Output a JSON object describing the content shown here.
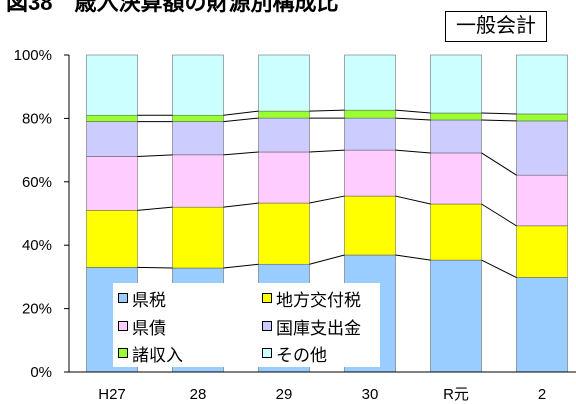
{
  "chart_data": {
    "type": "bar",
    "stacked": true,
    "title": "図38　歳入決算額の財源別構成比",
    "annotation": "一般会計",
    "categories": [
      "H27",
      "28",
      "29",
      "30",
      "R元",
      "2"
    ],
    "ylim": [
      0,
      100
    ],
    "yticks": [
      "0%",
      "20%",
      "40%",
      "60%",
      "80%",
      "100%"
    ],
    "legend": "bottom-left",
    "grid": false,
    "series": [
      {
        "name": "県税",
        "color": "#99CCFF",
        "values": [
          33.0,
          32.8,
          34.0,
          36.9,
          35.3,
          29.8
        ]
      },
      {
        "name": "地方交付税",
        "color": "#FFFF00",
        "values": [
          18.0,
          19.2,
          19.3,
          18.6,
          17.7,
          16.3
        ]
      },
      {
        "name": "県債",
        "color": "#FFCCFF",
        "values": [
          17.0,
          16.5,
          16.1,
          14.5,
          16.1,
          16.0
        ]
      },
      {
        "name": "国庫支出金",
        "color": "#CCCCFF",
        "values": [
          11.0,
          10.5,
          10.7,
          10.1,
          10.4,
          17.1
        ]
      },
      {
        "name": "諸収入",
        "color": "#99FF33",
        "values": [
          2.0,
          2.0,
          2.2,
          2.5,
          2.2,
          2.2
        ]
      },
      {
        "name": "その他",
        "color": "#CCFFFF",
        "values": [
          19.0,
          19.0,
          17.7,
          17.4,
          18.3,
          18.6
        ]
      }
    ]
  }
}
